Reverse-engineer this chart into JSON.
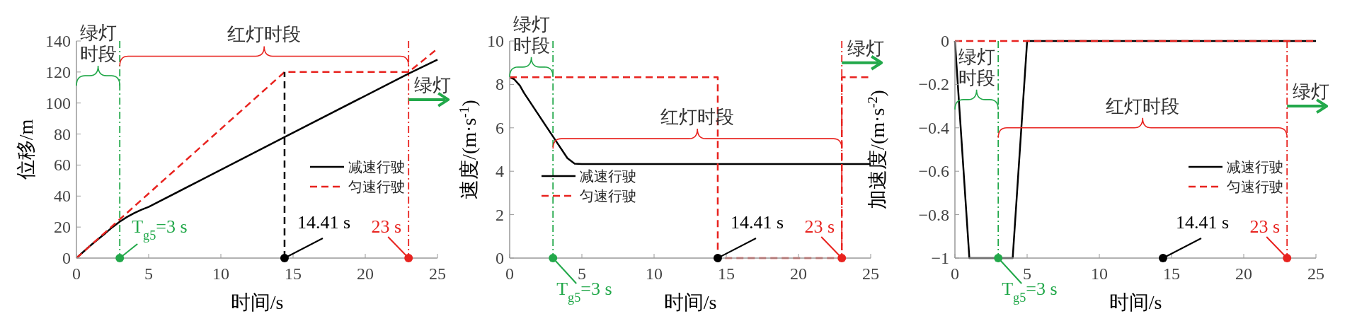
{
  "chart_data": [
    {
      "type": "line",
      "xlabel": "时间/s",
      "ylabel": "位移/m",
      "xlim": [
        0,
        25
      ],
      "xticks": [
        0,
        5,
        10,
        15,
        20,
        25
      ],
      "ylim": [
        0,
        140
      ],
      "yticks": [
        0,
        20,
        40,
        60,
        80,
        100,
        120,
        140
      ],
      "legend": "right",
      "series": [
        {
          "name": "减速行驶",
          "color": "#000000",
          "line_style": "solid",
          "x": [
            0,
            0.5,
            1,
            1.5,
            2,
            2.5,
            3,
            3.5,
            4,
            4.5,
            5,
            14.41,
            23,
            25
          ],
          "values": [
            0,
            4.2,
            8.3,
            12.2,
            16,
            20,
            23.5,
            26.5,
            29,
            31.2,
            33,
            78,
            119,
            128
          ]
        },
        {
          "name": "匀速行驶",
          "color": "#e8231f",
          "line_style": "dashed",
          "x": [
            0,
            14.41,
            23,
            25
          ],
          "values": [
            0,
            120,
            120,
            135
          ]
        },
        {
          "color": "#000000",
          "line_style": "dashed",
          "x": [
            14.41,
            14.41
          ],
          "values": [
            0,
            120
          ]
        }
      ],
      "ref_lines": [
        {
          "axis": "x",
          "value": 3,
          "color": "#22a84a",
          "line_style": "dashdot"
        },
        {
          "axis": "x",
          "value": 23,
          "color": "#e8231f",
          "line_style": "dashdot"
        }
      ],
      "annotations": [
        "绿灯时段",
        "红灯时段",
        "绿灯",
        {
          "text": "T$_{g5}$=3 s",
          "x": 3,
          "y": 0
        },
        {
          "text": "14.41 s",
          "x": 14.41,
          "y": 0
        },
        {
          "text": "23 s",
          "x": 23,
          "y": 0
        }
      ]
    },
    {
      "type": "line",
      "xlabel": "时间/s",
      "ylabel": "速度/(m·s$^{-1}$)",
      "xlim": [
        0,
        25
      ],
      "xticks": [
        0,
        5,
        10,
        15,
        20,
        25
      ],
      "ylim": [
        0,
        10
      ],
      "yticks": [
        0,
        2,
        4,
        6,
        8,
        10
      ],
      "legend": "bottom left",
      "series": [
        {
          "name": "减速行驶",
          "color": "#000000",
          "line_style": "solid",
          "x": [
            0,
            0.3,
            0.7,
            1,
            2,
            3,
            4,
            4.5,
            5,
            25
          ],
          "values": [
            8.33,
            8.25,
            7.95,
            7.6,
            6.6,
            5.6,
            4.6,
            4.35,
            4.33,
            4.33
          ]
        },
        {
          "name": "匀速行驶",
          "color": "#e8231f",
          "line_style": "dashed",
          "x": [
            0,
            14.41,
            14.41,
            23,
            23,
            25
          ],
          "values": [
            8.33,
            8.33,
            0,
            0,
            8.33,
            8.33
          ]
        }
      ],
      "ref_lines": [
        {
          "axis": "x",
          "value": 3,
          "color": "#22a84a",
          "line_style": "dashdot"
        },
        {
          "axis": "x",
          "value": 23,
          "color": "#e8231f",
          "line_style": "dashdot"
        }
      ],
      "annotations": [
        "绿灯时段",
        "红灯时段",
        "绿灯",
        {
          "text": "T$_{g5}$=3 s",
          "x": 3,
          "y": 0
        },
        {
          "text": "14.41 s",
          "x": 14.41,
          "y": 0
        },
        {
          "text": "23 s",
          "x": 23,
          "y": 0
        }
      ]
    },
    {
      "type": "line",
      "xlabel": "时间/s",
      "ylabel": "加速度/(m·s$^{-2}$)",
      "xlim": [
        0,
        25
      ],
      "xticks": [
        0,
        5,
        10,
        15,
        20,
        25
      ],
      "ylim": [
        -1,
        0
      ],
      "yticks": [
        {
          "value": -1,
          "label": "−1"
        },
        {
          "value": -0.8,
          "label": "−0.8"
        },
        {
          "value": -0.6,
          "label": "−0.6"
        },
        {
          "value": -0.4,
          "label": "−0.4"
        },
        {
          "value": -0.2,
          "label": "−0.2"
        },
        0
      ],
      "legend": "right",
      "series": [
        {
          "name": "减速行驶",
          "color": "#000000",
          "line_style": "solid",
          "x": [
            0,
            1,
            4,
            5,
            25
          ],
          "values": [
            0,
            -1,
            -1,
            0,
            0
          ]
        },
        {
          "name": "匀速行驶",
          "color": "#e8231f",
          "line_style": "dashed",
          "x": [
            0,
            25
          ],
          "values": [
            0,
            0
          ]
        }
      ],
      "ref_lines": [
        {
          "axis": "x",
          "value": 3,
          "color": "#22a84a",
          "line_style": "dashdot"
        },
        {
          "axis": "x",
          "value": 23,
          "color": "#e8231f",
          "line_style": "dashdot"
        }
      ],
      "annotations": [
        "绿灯时段",
        "红灯时段",
        "绿灯",
        {
          "text": "T$_{g5}$=3 s",
          "x": 3,
          "y": -1
        },
        {
          "text": "14.41 s",
          "x": 14.41,
          "y": -1
        },
        {
          "text": "23 s",
          "x": 23,
          "y": -1
        }
      ]
    }
  ]
}
